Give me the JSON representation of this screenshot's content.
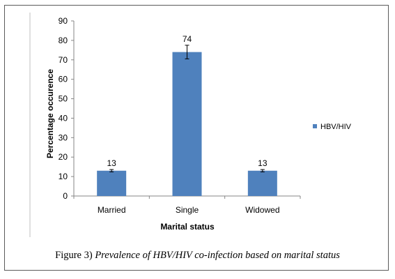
{
  "figure": {
    "number_label": "Figure 3)",
    "caption_text": "Prevalence of HBV/HIV co-infection based on marital status"
  },
  "chart_data": {
    "type": "bar",
    "title": "",
    "categories": [
      "Married",
      "Single",
      "Widowed"
    ],
    "series": [
      {
        "name": "HBV/HIV",
        "values": [
          13,
          74,
          13
        ],
        "error": [
          0.6,
          3.5,
          0.6
        ]
      }
    ],
    "data_labels": [
      "13",
      "74",
      "13"
    ],
    "xlabel": "Marital status",
    "ylabel": "Percentage occurence",
    "ylim": [
      0,
      90
    ],
    "yticks": [
      0,
      10,
      20,
      30,
      40,
      50,
      60,
      70,
      80,
      90
    ],
    "ytick_labels": [
      "0",
      "10",
      "20",
      "30",
      "40",
      "50",
      "60",
      "70",
      "80",
      "90"
    ],
    "grid": false,
    "legend_position": "right",
    "bar_color": "#4F81BD",
    "error_bar_color": "#000000"
  }
}
